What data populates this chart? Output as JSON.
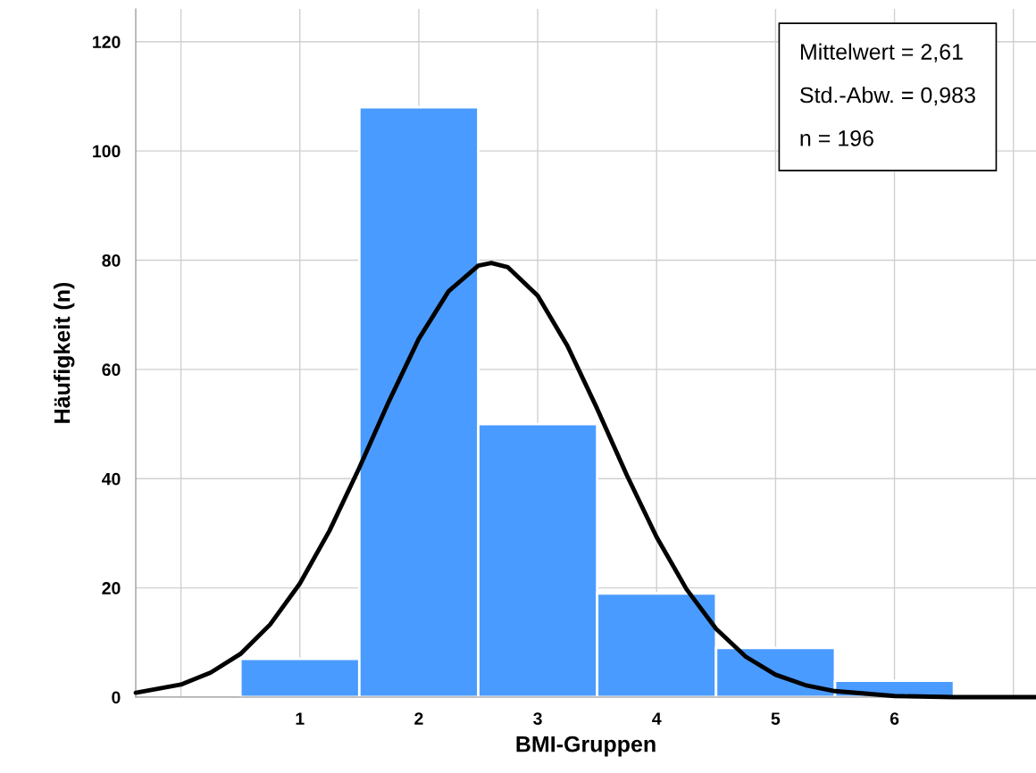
{
  "chart_data": {
    "type": "histogram",
    "xlabel": "BMI-Gruppen",
    "ylabel": "Häufigkeit (n)",
    "bins": [
      0.5,
      1.5,
      2.5,
      3.5,
      4.5,
      5.5,
      6.5
    ],
    "values": [
      7,
      108,
      50,
      19,
      9,
      3
    ],
    "color": "#4a9bff",
    "series": [
      {
        "type": "line",
        "color": "#000000",
        "x": [
          -0.38,
          0,
          0.25,
          0.5,
          0.75,
          1,
          1.25,
          1.5,
          1.75,
          2,
          2.25,
          2.5,
          2.61,
          2.75,
          3,
          3.25,
          3.5,
          3.75,
          4,
          4.25,
          4.5,
          4.75,
          5,
          5.25,
          5.5,
          6,
          6.5,
          7.19
        ],
        "values": [
          0.8,
          2.3,
          4.5,
          7.9,
          13.3,
          20.8,
          30.5,
          42.0,
          54.2,
          65.6,
          74.3,
          79.0,
          79.5,
          78.7,
          73.5,
          64.3,
          52.8,
          40.6,
          29.3,
          19.8,
          12.5,
          7.4,
          4.1,
          2.2,
          1.1,
          0.2,
          0,
          0
        ]
      }
    ],
    "xlim": [
      -0.38,
      7.19
    ],
    "xticks": [
      {
        "value": 0,
        "label": null
      },
      1,
      2,
      3,
      4,
      5,
      6,
      {
        "value": 7,
        "label": null
      }
    ],
    "ylim": [
      0,
      126
    ],
    "yticks": [
      0,
      20,
      40,
      60,
      80,
      100,
      120
    ],
    "grid": true,
    "legend": false,
    "annotations": [
      "Mittelwert = 2,61",
      "Std.-Abw. = 0,983",
      "n = 196"
    ]
  }
}
